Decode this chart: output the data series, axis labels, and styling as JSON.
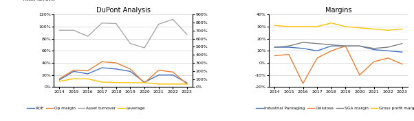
{
  "years": [
    2014,
    2015,
    2016,
    2017,
    2018,
    2019,
    2020,
    2021,
    2022,
    2023
  ],
  "dupont": {
    "title": "DuPont Analysis",
    "left_label": "ROE\nOp margin\nAsset Turnover",
    "right_label": "Leverage",
    "ROE": [
      0.12,
      0.26,
      0.22,
      0.32,
      0.3,
      0.26,
      0.08,
      0.2,
      0.2,
      0.07
    ],
    "Op_margin": [
      0.14,
      0.28,
      0.27,
      0.42,
      0.4,
      0.3,
      0.07,
      0.28,
      0.25,
      0.05
    ],
    "Asset_turnover": [
      0.94,
      0.94,
      0.84,
      1.06,
      1.05,
      0.72,
      0.65,
      1.04,
      1.12,
      0.87
    ],
    "Leverage": [
      0.72,
      1.04,
      1.02,
      0.62,
      0.58,
      0.55,
      0.54,
      0.38,
      0.38,
      0.38
    ],
    "left_ylim": [
      0.0,
      1.2
    ],
    "left_yticks": [
      0.0,
      0.2,
      0.4,
      0.6,
      0.8,
      1.0,
      1.2
    ],
    "left_yticklabels": [
      "0%",
      "20%",
      "40%",
      "60%",
      "80%",
      "100%",
      "120%"
    ],
    "right_ylim": [
      0.0,
      9.0
    ],
    "right_yticks": [
      0.0,
      1.0,
      2.0,
      3.0,
      4.0,
      5.0,
      6.0,
      7.0,
      8.0,
      9.0
    ],
    "right_yticklabels": [
      "0%",
      "100%",
      "200%",
      "300%",
      "400%",
      "500%",
      "600%",
      "700%",
      "800%",
      "900%"
    ],
    "colors": {
      "ROE": "#4472c4",
      "Op_margin": "#ed7d31",
      "Asset_turnover": "#a9a9a9",
      "Leverage": "#ffc000"
    },
    "legend_labels": [
      "ROE",
      "Op margin",
      "Asset turnover",
      "Leverage"
    ]
  },
  "margins": {
    "title": "Margins",
    "Industrial_Packaging": [
      0.13,
      0.13,
      0.12,
      0.1,
      0.14,
      0.14,
      0.14,
      0.11,
      0.1,
      0.09
    ],
    "Cellulose": [
      0.06,
      0.07,
      -0.17,
      0.04,
      0.1,
      0.14,
      -0.1,
      0.01,
      0.04,
      -0.01
    ],
    "SGA_margin": [
      0.13,
      0.14,
      0.17,
      0.16,
      0.15,
      0.14,
      0.14,
      0.12,
      0.13,
      0.16
    ],
    "Gross_profit_margin": [
      0.31,
      0.3,
      0.3,
      0.3,
      0.33,
      0.3,
      0.29,
      0.28,
      0.27,
      0.28
    ],
    "ylim": [
      -0.2,
      0.4
    ],
    "yticks": [
      -0.2,
      -0.1,
      0.0,
      0.1,
      0.2,
      0.3,
      0.4
    ],
    "yticklabels": [
      "-20%",
      "-10%",
      "0%",
      "10%",
      "20%",
      "30%",
      "40%"
    ],
    "colors": {
      "Industrial_Packaging": "#4472c4",
      "Cellulose": "#ed7d31",
      "SGA_margin": "#7f7f7f",
      "Gross_profit_margin": "#ffc000"
    },
    "legend_labels": [
      "Industrial Packaging",
      "Cellulose",
      "SGA margin",
      "Gross profit margin"
    ]
  }
}
